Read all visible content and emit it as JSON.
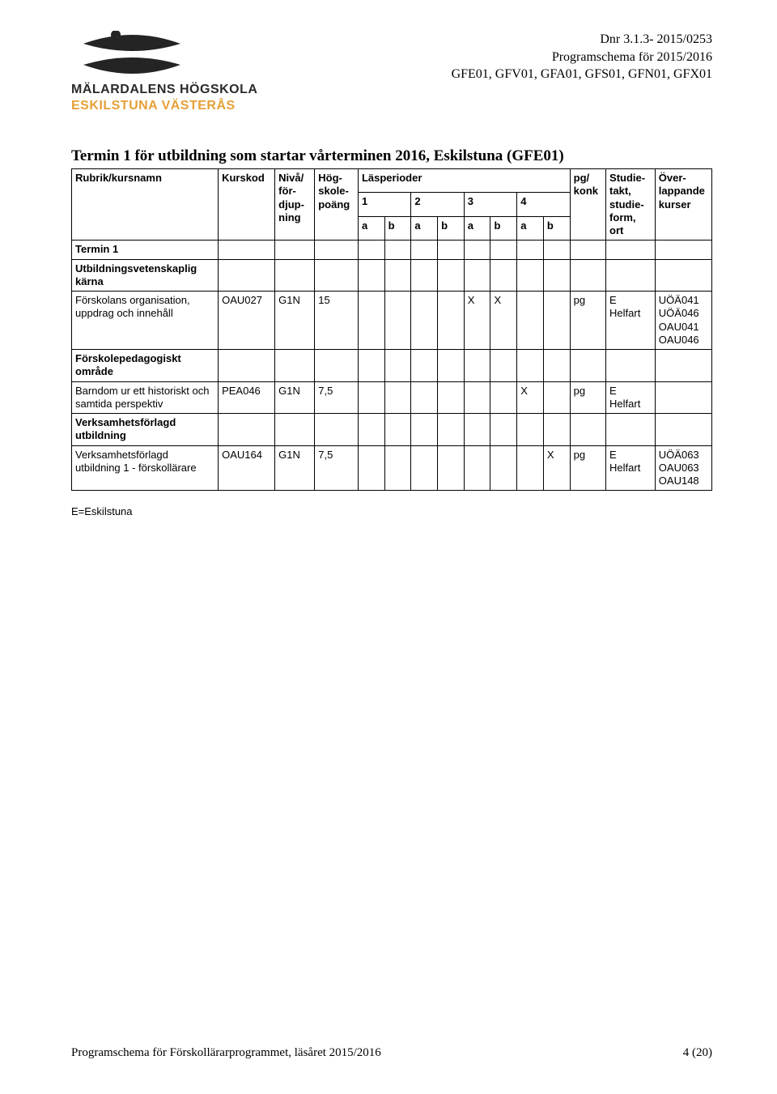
{
  "meta": {
    "dnr": "Dnr 3.1.3- 2015/0253",
    "programschema": "Programschema för 2015/2016",
    "codes": "GFE01, GFV01, GFA01, GFS01, GFN01, GFX01"
  },
  "logo": {
    "line1": "MÄLARDALENS HÖGSKOLA",
    "line2": "ESKILSTUNA VÄSTERÅS",
    "line1_color": "#2b2b2b",
    "line2_color": "#e6a037",
    "shape_top_color": "#242424",
    "shape_bottom_color": "#242424",
    "font_size_pt": 14
  },
  "table_title": "Termin 1 för utbildning som startar vårterminen 2016, Eskilstuna (GFE01)",
  "headers": {
    "rubrik": "Rubrik/kursnamn",
    "kurskod": "Kurskod",
    "niva": "Nivå/\nför-\ndjup-\nning",
    "hogskolepoang": "Hög-\nskole-\npoäng",
    "lasperioder": "Läsperioder",
    "periods": [
      "1",
      "2",
      "3",
      "4"
    ],
    "ab": [
      "a",
      "b"
    ],
    "pg_konk": "pg/\nkonk",
    "studietakt": "Studie-\ntakt,\nstudie-\nform,\nort",
    "overlap": "Över-\nlappande\nkurser"
  },
  "columns": {
    "rubrik_w": 155,
    "kurskod_w": 60,
    "niva_w": 42,
    "poang_w": 46,
    "ab_w": 28,
    "pg_w": 38,
    "takt_w": 52,
    "overlap_w": 60,
    "border_color": "#000000",
    "font_size": 13
  },
  "rows": [
    {
      "type": "section",
      "label": "Termin 1"
    },
    {
      "type": "section",
      "label": "Utbildningsvetenskaplig kärna"
    },
    {
      "type": "course",
      "name": "Förskolans organisation, uppdrag och innehåll",
      "kurskod": "OAU027",
      "niva": "G1N",
      "poang": "15",
      "marks": [
        "",
        "",
        "",
        "",
        "X",
        "X",
        "",
        ""
      ],
      "pg": "pg",
      "takt": "E\nHelfart",
      "overlap": "UÖÄ041\nUÖÄ046\nOAU041\nOAU046"
    },
    {
      "type": "section",
      "label": "Förskolepedagogiskt område"
    },
    {
      "type": "course",
      "name": "Barndom ur ett historiskt och samtida perspektiv",
      "kurskod": "PEA046",
      "niva": "G1N",
      "poang": "7,5",
      "marks": [
        "",
        "",
        "",
        "",
        "",
        "",
        "X",
        ""
      ],
      "pg": "pg",
      "takt": "E\nHelfart",
      "overlap": ""
    },
    {
      "type": "section",
      "label": "Verksamhetsförlagd utbildning"
    },
    {
      "type": "course",
      "name": "Verksamhetsförlagd utbildning 1 - förskollärare",
      "kurskod": "OAU164",
      "niva": "G1N",
      "poang": "7,5",
      "marks": [
        "",
        "",
        "",
        "",
        "",
        "",
        "",
        "X"
      ],
      "pg": "pg",
      "takt": "E\nHelfart",
      "overlap": "UÖÄ063\nOAU063\nOAU148"
    }
  ],
  "legend": "E=Eskilstuna",
  "footer": {
    "left": "Programschema för Förskollärarprogrammet, läsåret 2015/2016",
    "right": "4 (20)"
  }
}
